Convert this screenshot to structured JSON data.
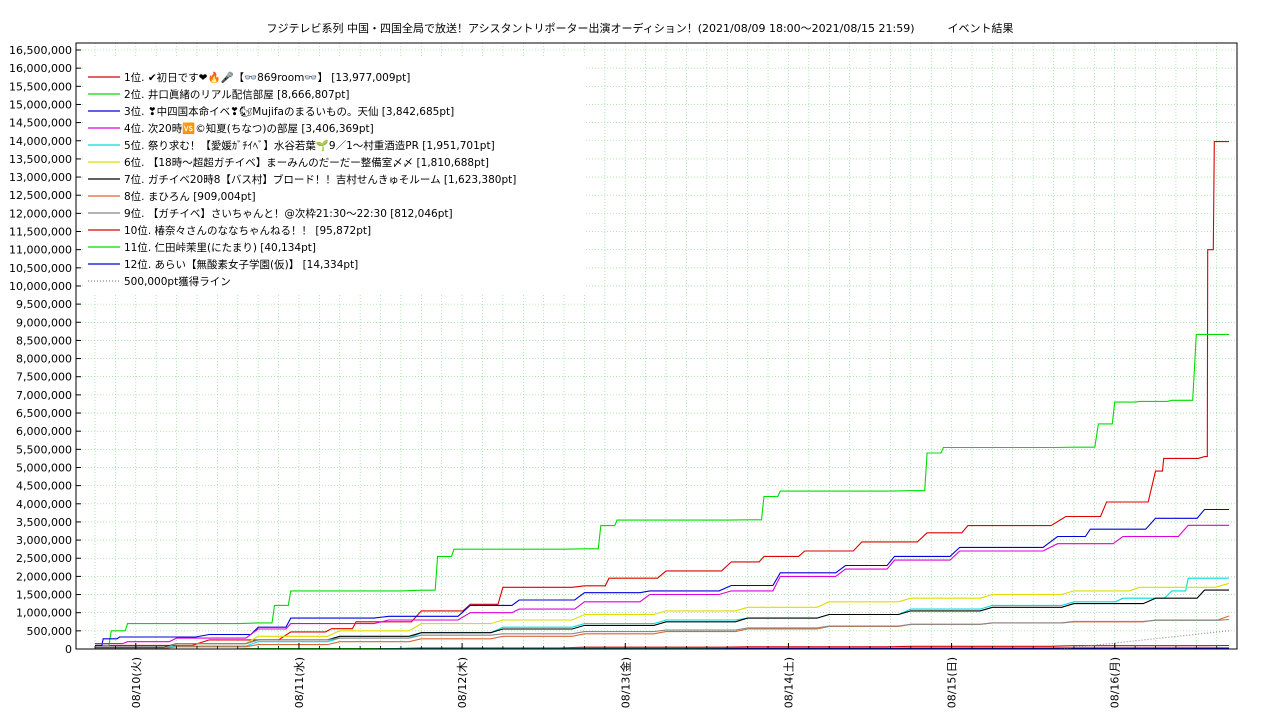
{
  "chart_data": {
    "type": "line",
    "title": "フジテレビ系列 中国・四国全局で放送！アシスタントリポーター出演オーディション！(2021/08/09 18:00～2021/08/15 21:59)　　　イベント結果",
    "xlabel": "",
    "ylabel": "",
    "ylim": [
      0,
      16500000
    ],
    "yticks": [
      0,
      500000,
      1000000,
      1500000,
      2000000,
      2500000,
      3000000,
      3500000,
      4000000,
      4500000,
      5000000,
      5500000,
      6000000,
      6500000,
      7000000,
      7500000,
      8000000,
      8500000,
      9000000,
      9500000,
      10000000,
      10500000,
      11000000,
      11500000,
      12000000,
      12500000,
      13000000,
      13500000,
      14000000,
      14500000,
      15000000,
      15500000,
      16000000,
      16500000
    ],
    "xlim": [
      "2021-08-09 18:00",
      "2021-08-15 21:59"
    ],
    "xticks": [
      "08/10(火)",
      "08/11(水)",
      "08/12(木)",
      "08/13(金)",
      "08/14(土)",
      "08/15(日)",
      "08/16(月)"
    ],
    "grid": true,
    "legend_position": "top-left",
    "series": [
      {
        "name": "1位. ✔初日です❤🔥🎤【👓869room👓】 [13,977,009pt]",
        "color": "#dd0000",
        "style": "solid",
        "points": [
          [
            0.0,
            100000
          ],
          [
            0.7,
            250000
          ],
          [
            1.2,
            470000
          ],
          [
            1.45,
            560000
          ],
          [
            1.6,
            750000
          ],
          [
            2.0,
            1050000
          ],
          [
            2.3,
            1230000
          ],
          [
            2.5,
            1700000
          ],
          [
            3.0,
            1740000
          ],
          [
            3.15,
            1950000
          ],
          [
            3.5,
            2150000
          ],
          [
            3.9,
            2400000
          ],
          [
            4.1,
            2550000
          ],
          [
            4.35,
            2700000
          ],
          [
            4.7,
            2950000
          ],
          [
            5.1,
            3200000
          ],
          [
            5.35,
            3400000
          ],
          [
            5.95,
            3650000
          ],
          [
            6.2,
            4050000
          ],
          [
            6.5,
            4900000
          ],
          [
            6.55,
            5250000
          ],
          [
            6.8,
            5300000
          ],
          [
            6.82,
            11000000
          ],
          [
            6.86,
            13977009
          ],
          [
            6.95,
            13977009
          ]
        ]
      },
      {
        "name": "2位. 井口眞緒のリアル配信部屋 [8,666,807pt]",
        "color": "#00dd00",
        "style": "solid",
        "points": [
          [
            0.0,
            100000
          ],
          [
            0.1,
            500000
          ],
          [
            0.2,
            700000
          ],
          [
            1.0,
            720000
          ],
          [
            1.1,
            1200000
          ],
          [
            1.2,
            1600000
          ],
          [
            2.0,
            1620000
          ],
          [
            2.1,
            2550000
          ],
          [
            2.2,
            2750000
          ],
          [
            3.0,
            2760000
          ],
          [
            3.1,
            3400000
          ],
          [
            3.2,
            3550000
          ],
          [
            4.0,
            3560000
          ],
          [
            4.1,
            4200000
          ],
          [
            4.2,
            4350000
          ],
          [
            5.0,
            4360000
          ],
          [
            5.1,
            5400000
          ],
          [
            5.2,
            5550000
          ],
          [
            6.0,
            5560000
          ],
          [
            6.15,
            6200000
          ],
          [
            6.25,
            6800000
          ],
          [
            6.4,
            6820000
          ],
          [
            6.6,
            6850000
          ],
          [
            6.75,
            8666807
          ],
          [
            6.95,
            8666807
          ]
        ]
      },
      {
        "name": "3位. ❣中四国本命イベ❣🐿Mujifaのまるいもの。天仙 [3,842,685pt]",
        "color": "#0000dd",
        "style": "solid",
        "points": [
          [
            0.0,
            100000
          ],
          [
            0.05,
            280000
          ],
          [
            0.15,
            330000
          ],
          [
            0.7,
            400000
          ],
          [
            1.0,
            600000
          ],
          [
            1.2,
            850000
          ],
          [
            1.8,
            900000
          ],
          [
            2.3,
            1200000
          ],
          [
            2.6,
            1350000
          ],
          [
            3.0,
            1550000
          ],
          [
            3.4,
            1600000
          ],
          [
            3.9,
            1750000
          ],
          [
            4.2,
            2100000
          ],
          [
            4.6,
            2300000
          ],
          [
            4.9,
            2550000
          ],
          [
            5.3,
            2800000
          ],
          [
            5.9,
            3100000
          ],
          [
            6.1,
            3300000
          ],
          [
            6.5,
            3600000
          ],
          [
            6.8,
            3842685
          ],
          [
            6.95,
            3842685
          ]
        ]
      },
      {
        "name": "4位. 次20時🆚©知夏(ちなつ)の部屋 [3,406,369pt]",
        "color": "#dd00dd",
        "style": "solid",
        "points": [
          [
            0.0,
            150000
          ],
          [
            0.2,
            200000
          ],
          [
            0.5,
            300000
          ],
          [
            1.0,
            550000
          ],
          [
            1.2,
            700000
          ],
          [
            1.8,
            800000
          ],
          [
            2.3,
            1000000
          ],
          [
            2.6,
            1100000
          ],
          [
            3.0,
            1300000
          ],
          [
            3.4,
            1500000
          ],
          [
            3.9,
            1600000
          ],
          [
            4.2,
            2000000
          ],
          [
            4.6,
            2200000
          ],
          [
            4.9,
            2450000
          ],
          [
            5.3,
            2700000
          ],
          [
            5.9,
            2900000
          ],
          [
            6.3,
            3100000
          ],
          [
            6.7,
            3406369
          ],
          [
            6.95,
            3406369
          ]
        ]
      },
      {
        "name": "5位. 祭り求む！【愛媛ｶﾞﾁｲﾍﾞ】水谷若葉🌱9／1〜村重酒造PR [1,951,701pt]",
        "color": "#00dddd",
        "style": "solid",
        "points": [
          [
            0.0,
            30000
          ],
          [
            0.5,
            80000
          ],
          [
            1.0,
            200000
          ],
          [
            1.5,
            300000
          ],
          [
            2.0,
            450000
          ],
          [
            2.5,
            600000
          ],
          [
            3.0,
            700000
          ],
          [
            3.5,
            800000
          ],
          [
            4.0,
            850000
          ],
          [
            4.5,
            950000
          ],
          [
            5.0,
            1100000
          ],
          [
            5.5,
            1200000
          ],
          [
            6.0,
            1300000
          ],
          [
            6.3,
            1400000
          ],
          [
            6.6,
            1600000
          ],
          [
            6.7,
            1950000
          ],
          [
            6.95,
            1951701
          ]
        ]
      },
      {
        "name": "6位. 【18時〜超超ガチイベ】まーみんのだーだー整備室〆〆 [1,810,688pt]",
        "color": "#dddd00",
        "style": "solid",
        "points": [
          [
            0.0,
            40000
          ],
          [
            0.5,
            150000
          ],
          [
            1.0,
            350000
          ],
          [
            1.5,
            500000
          ],
          [
            2.0,
            700000
          ],
          [
            2.5,
            800000
          ],
          [
            3.0,
            950000
          ],
          [
            3.5,
            1050000
          ],
          [
            4.0,
            1150000
          ],
          [
            4.5,
            1300000
          ],
          [
            5.0,
            1400000
          ],
          [
            5.5,
            1500000
          ],
          [
            6.0,
            1600000
          ],
          [
            6.4,
            1700000
          ],
          [
            6.95,
            1810688
          ]
        ]
      },
      {
        "name": "7位. ガチイベ20時8【バス村】ブロード！！吉村せんきゅそルーム [1,623,380pt]",
        "color": "#000000",
        "style": "solid",
        "points": [
          [
            0.0,
            50000
          ],
          [
            0.5,
            150000
          ],
          [
            1.0,
            250000
          ],
          [
            1.5,
            350000
          ],
          [
            2.0,
            450000
          ],
          [
            2.5,
            550000
          ],
          [
            3.0,
            650000
          ],
          [
            3.5,
            750000
          ],
          [
            4.0,
            850000
          ],
          [
            4.5,
            950000
          ],
          [
            5.0,
            1050000
          ],
          [
            5.5,
            1150000
          ],
          [
            6.0,
            1250000
          ],
          [
            6.5,
            1400000
          ],
          [
            6.8,
            1623380
          ],
          [
            6.95,
            1623380
          ]
        ]
      },
      {
        "name": "8位. まひろん [909,004pt]",
        "color": "#dd6633",
        "style": "solid",
        "points": [
          [
            0.0,
            20000
          ],
          [
            0.5,
            60000
          ],
          [
            1.0,
            120000
          ],
          [
            1.5,
            200000
          ],
          [
            2.0,
            280000
          ],
          [
            2.5,
            350000
          ],
          [
            3.0,
            420000
          ],
          [
            3.5,
            480000
          ],
          [
            4.0,
            550000
          ],
          [
            4.5,
            620000
          ],
          [
            5.0,
            680000
          ],
          [
            5.5,
            720000
          ],
          [
            6.0,
            750000
          ],
          [
            6.5,
            800000
          ],
          [
            6.95,
            909004
          ]
        ]
      },
      {
        "name": "9位. 【ガチイベ】さいちゃんと！@次枠21:30〜22:30 [812,046pt]",
        "color": "#888888",
        "style": "solid",
        "points": [
          [
            0.0,
            30000
          ],
          [
            0.5,
            150000
          ],
          [
            1.0,
            250000
          ],
          [
            1.5,
            300000
          ],
          [
            2.0,
            380000
          ],
          [
            2.5,
            420000
          ],
          [
            3.0,
            480000
          ],
          [
            3.5,
            520000
          ],
          [
            4.0,
            580000
          ],
          [
            4.5,
            630000
          ],
          [
            5.0,
            680000
          ],
          [
            5.5,
            720000
          ],
          [
            6.0,
            760000
          ],
          [
            6.5,
            790000
          ],
          [
            6.95,
            812046
          ]
        ]
      },
      {
        "name": "10位. 椿奈々さんのななちゃんねる！！ [95,872pt]",
        "color": "#dd0000",
        "style": "solid",
        "points": [
          [
            0.0,
            0
          ],
          [
            1.0,
            10000
          ],
          [
            2.0,
            30000
          ],
          [
            3.0,
            50000
          ],
          [
            4.0,
            60000
          ],
          [
            5.0,
            75000
          ],
          [
            6.0,
            90000
          ],
          [
            6.95,
            95872
          ]
        ]
      },
      {
        "name": "11位. 仁田峠茉里(にたまり) [40,134pt]",
        "color": "#00dd00",
        "style": "solid",
        "points": [
          [
            0.0,
            0
          ],
          [
            1.0,
            10000
          ],
          [
            2.0,
            20000
          ],
          [
            3.0,
            25000
          ],
          [
            4.0,
            30000
          ],
          [
            5.0,
            35000
          ],
          [
            6.0,
            38000
          ],
          [
            6.95,
            40134
          ]
        ]
      },
      {
        "name": "12位. あらい【無酸素女子学園(仮)】 [14,334pt]",
        "color": "#0000dd",
        "style": "solid",
        "points": [
          [
            0.0,
            0
          ],
          [
            2.0,
            5000
          ],
          [
            4.0,
            10000
          ],
          [
            6.95,
            14334
          ]
        ]
      },
      {
        "name": "500,000pt獲得ライン",
        "color": "#888888",
        "style": "dotted",
        "points": [
          [
            0.0,
            0
          ],
          [
            6.95,
            500000
          ]
        ]
      }
    ]
  }
}
